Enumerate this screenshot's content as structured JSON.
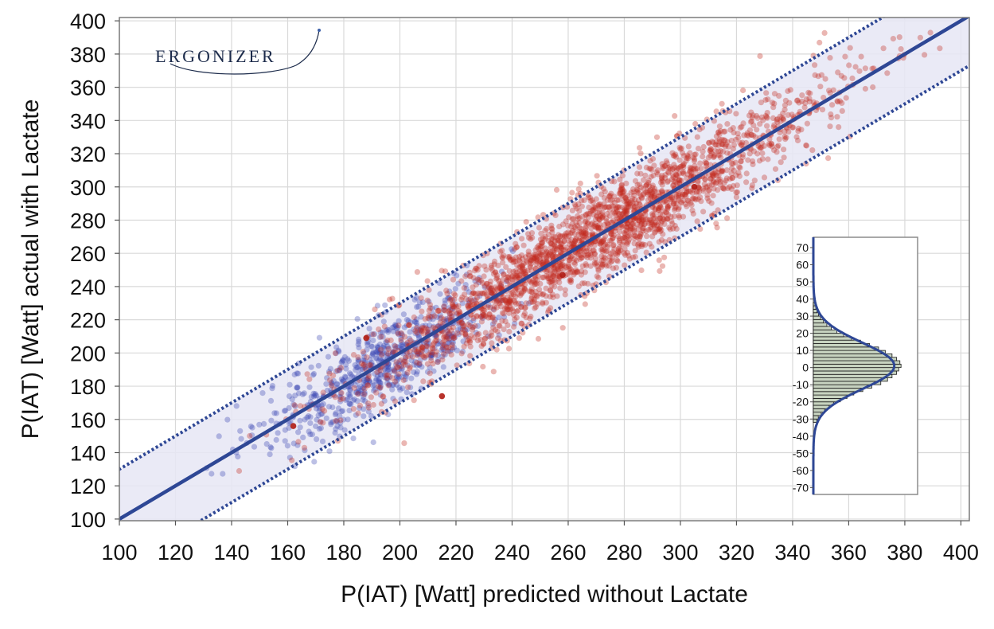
{
  "logo": {
    "text": "ERGONIZER"
  },
  "chart_data": [
    {
      "type": "scatter",
      "title": "",
      "xlabel": "P(IAT) [Watt] predicted without Lactate",
      "ylabel": "P(IAT) [Watt] actual with Lactate",
      "xlim": [
        100,
        403
      ],
      "ylim": [
        99,
        402
      ],
      "x_ticks": [
        100,
        120,
        140,
        160,
        180,
        200,
        220,
        240,
        260,
        280,
        300,
        320,
        340,
        360,
        380,
        400
      ],
      "y_ticks": [
        100,
        120,
        140,
        160,
        180,
        200,
        220,
        240,
        260,
        280,
        300,
        320,
        340,
        360,
        380,
        400
      ],
      "grid": true,
      "identity_line": {
        "slope": 1,
        "intercept": 0,
        "color": "#2e4795"
      },
      "band": {
        "offset": 30,
        "color": "#e6e6f4",
        "line_color": "#2e4795"
      },
      "series": [
        {
          "color": "#3c46b4",
          "x_range": [
            128,
            250
          ],
          "count": 700
        },
        {
          "color": "#c0281e",
          "x_range": [
            140,
            400
          ],
          "count": 2300
        }
      ],
      "highlight_points": [
        [
          188,
          209
        ],
        [
          215,
          174
        ],
        [
          258,
          247
        ],
        [
          305,
          300
        ],
        [
          162,
          156
        ]
      ]
    },
    {
      "type": "bar",
      "orientation": "horizontal",
      "title": "",
      "ylim": [
        -74,
        76
      ],
      "y_ticks": [
        70,
        60,
        50,
        40,
        30,
        20,
        10,
        0,
        -10,
        -20,
        -30,
        -40,
        -50,
        -60,
        -70
      ],
      "bin_width": 2,
      "bins": [
        -32,
        -30,
        -28,
        -26,
        -24,
        -22,
        -20,
        -18,
        -16,
        -14,
        -12,
        -10,
        -8,
        -6,
        -4,
        -2,
        0,
        2,
        4,
        6,
        8,
        10,
        12,
        14,
        16,
        18,
        20,
        22,
        24,
        26,
        28,
        30,
        32,
        34,
        36
      ],
      "counts": [
        1.5,
        2.2,
        3.5,
        5,
        7,
        9,
        12,
        15,
        18,
        22,
        26,
        30,
        33,
        35,
        37,
        38,
        39,
        38.5,
        37,
        35,
        32,
        29,
        25,
        21,
        17,
        13.5,
        10.5,
        8,
        6,
        4.5,
        3.2,
        2.3,
        1.6,
        1.1,
        0.7
      ],
      "fill_color": "#c7d3c0",
      "normal_fit": {
        "mean": 1,
        "sd": 13.5,
        "peak": 36,
        "color": "#2e4795"
      }
    }
  ]
}
